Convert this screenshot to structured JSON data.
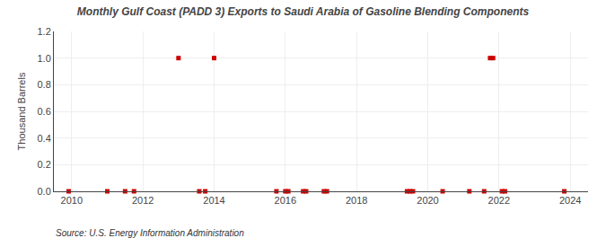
{
  "chart_data": {
    "type": "scatter",
    "title": "Monthly Gulf Coast (PADD 3) Exports to Saudi Arabia of Gasoline Blending Components",
    "ylabel": "Thousand Barrels",
    "annotations": [
      "Source: U.S. Energy Information Administration"
    ],
    "x": [
      2009.917,
      2011.0,
      2011.5,
      2011.75,
      2013.0,
      2013.583,
      2013.75,
      2014.0,
      2015.75,
      2016.0,
      2016.083,
      2016.5,
      2016.583,
      2017.083,
      2017.167,
      2019.417,
      2019.5,
      2019.583,
      2020.417,
      2021.167,
      2021.583,
      2021.75,
      2021.833,
      2022.083,
      2022.167,
      2023.833
    ],
    "values": [
      0.0,
      0.0,
      0.0,
      0.0,
      1.0,
      0.0,
      0.0,
      1.0,
      0.0,
      0.0,
      0.0,
      0.0,
      0.0,
      0.0,
      0.0,
      0.0,
      0.0,
      0.0,
      0.0,
      0.0,
      0.0,
      1.0,
      1.0,
      0.0,
      0.0,
      0.0
    ],
    "color": "#cc0000",
    "marker": "square",
    "xlim": [
      2009.5,
      2024.5
    ],
    "ylim": [
      0,
      1.2
    ],
    "xticks": [
      2010,
      2012,
      2014,
      2016,
      2018,
      2020,
      2022,
      2024
    ],
    "yticks": [
      {
        "value": 0.0,
        "label": "0.0"
      },
      0.2,
      0.4,
      0.6,
      0.8,
      {
        "value": 1.0,
        "label": "1.0"
      },
      1.2
    ],
    "grid": true
  }
}
